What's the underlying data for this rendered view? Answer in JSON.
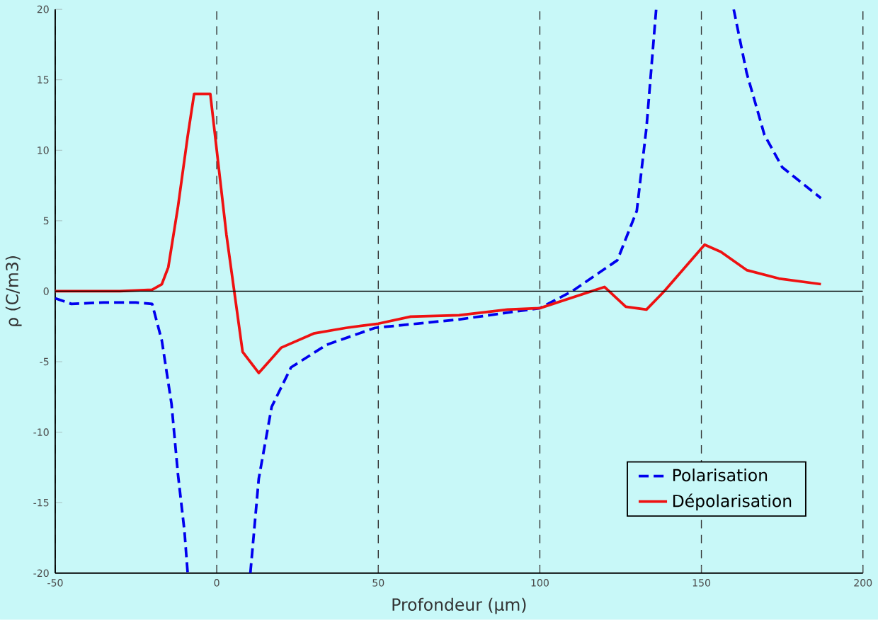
{
  "chart_data": {
    "type": "line",
    "xlabel": "Profondeur (μm)",
    "ylabel": "ρ (C/m3)",
    "xlim": [
      -50,
      200
    ],
    "ylim": [
      -20,
      20
    ],
    "xticks": [
      -50,
      0,
      50,
      100,
      150,
      200
    ],
    "yticks": [
      -20,
      -15,
      -10,
      -5,
      0,
      5,
      10,
      15,
      20
    ],
    "grid": "x",
    "legend": "bottom right",
    "ref_lines": [
      {
        "axis": "y",
        "value": 0,
        "color": "#000000",
        "line_style": "solid"
      }
    ],
    "series": [
      {
        "name": "Polarisation",
        "color": "#0000ee",
        "line_style": "dashed",
        "x": [
          -50,
          -45,
          -35,
          -25,
          -20,
          -17,
          -14,
          -12,
          -10,
          -9,
          null,
          10.4,
          13,
          17,
          23,
          34,
          49,
          75,
          100,
          110,
          124,
          130,
          133,
          136,
          null,
          160,
          164,
          169.5,
          175,
          187
        ],
        "values": [
          -0.5,
          -0.9,
          -0.8,
          -0.8,
          -0.9,
          -3.5,
          -8,
          -13,
          -17,
          -20,
          null,
          -20,
          -13.3,
          -8.2,
          -5.4,
          -3.8,
          -2.6,
          -2,
          -1.2,
          0,
          2.2,
          5.7,
          11.6,
          20,
          null,
          20,
          15.5,
          11.1,
          8.8,
          6.6
        ]
      },
      {
        "name": "Dépolarisation",
        "color": "#ee1111",
        "line_style": "solid",
        "x": [
          -50,
          -40,
          -30,
          -20,
          -17,
          -15,
          -12,
          -9,
          -7,
          -2,
          3,
          8,
          13,
          20,
          30,
          40,
          50,
          60,
          75,
          90,
          100,
          120,
          126.6,
          133,
          138.5,
          151,
          156,
          164,
          174,
          187
        ],
        "values": [
          0,
          0,
          0,
          0.1,
          0.5,
          1.7,
          6,
          11,
          14,
          14,
          4,
          -4.3,
          -5.8,
          -4,
          -3,
          -2.6,
          -2.3,
          -1.8,
          -1.7,
          -1.3,
          -1.2,
          0.3,
          -1.1,
          -1.3,
          0,
          3.3,
          2.8,
          1.5,
          0.9,
          0.5
        ]
      }
    ]
  }
}
